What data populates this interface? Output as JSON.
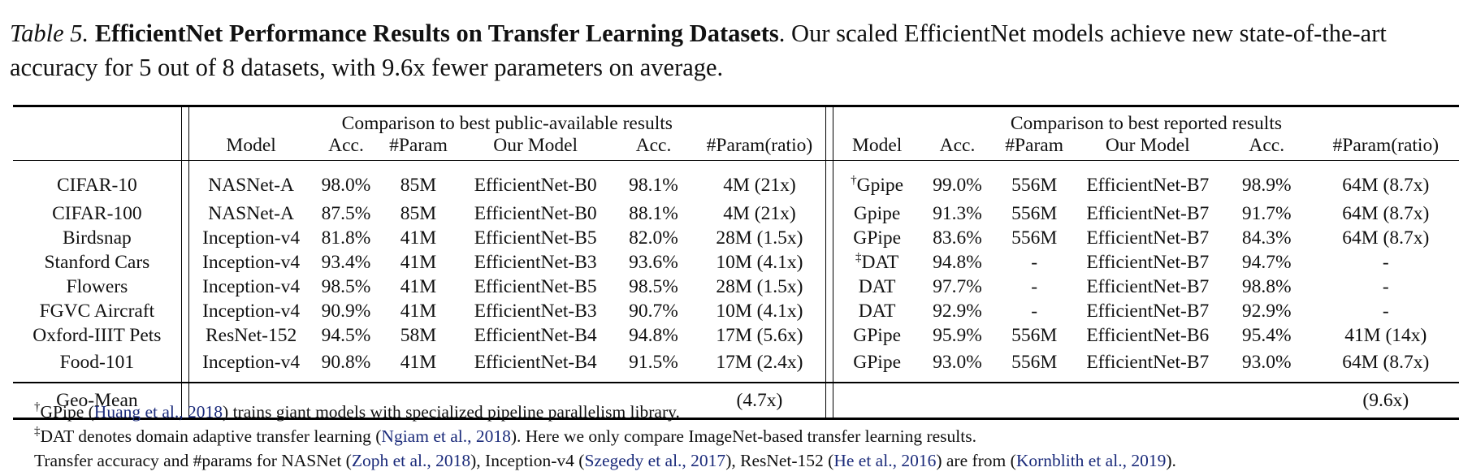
{
  "caption": {
    "label": "Table 5.",
    "title": "EfficientNet Performance Results on Transfer Learning Datasets",
    "text": ". Our scaled EfficientNet models achieve new state-of-the-art accuracy for 5 out of 8 datasets, with 9.6x fewer parameters on average."
  },
  "table": {
    "group_public": "Comparison to best public-available results",
    "group_reported": "Comparison to best reported results",
    "columns": [
      "Model",
      "Acc.",
      "#Param",
      "Our Model",
      "Acc.",
      "#Param(ratio)",
      "Model",
      "Acc.",
      "#Param",
      "Our Model",
      "Acc.",
      "#Param(ratio)"
    ],
    "rows": [
      {
        "dataset": "CIFAR-10",
        "pub_model": "NASNet-A",
        "pub_acc": "98.0%",
        "pub_param": "85M",
        "our_model": "EfficientNet-B0",
        "our_acc": "98.1%",
        "our_param": "4M (21x)",
        "rep_mark": "†",
        "rep_model": "Gpipe",
        "rep_acc": "99.0%",
        "rep_param": "556M",
        "our2_model": "EfficientNet-B7",
        "our2_acc": "98.9%",
        "our2_param": "64M (8.7x)"
      },
      {
        "dataset": "CIFAR-100",
        "pub_model": "NASNet-A",
        "pub_acc": "87.5%",
        "pub_param": "85M",
        "our_model": "EfficientNet-B0",
        "our_acc": "88.1%",
        "our_param": "4M (21x)",
        "rep_mark": "",
        "rep_model": "Gpipe",
        "rep_acc": "91.3%",
        "rep_param": "556M",
        "our2_model": "EfficientNet-B7",
        "our2_acc": "91.7%",
        "our2_param": "64M (8.7x)"
      },
      {
        "dataset": "Birdsnap",
        "pub_model": "Inception-v4",
        "pub_acc": "81.8%",
        "pub_param": "41M",
        "our_model": "EfficientNet-B5",
        "our_acc": "82.0%",
        "our_param": "28M (1.5x)",
        "rep_mark": "",
        "rep_model": "GPipe",
        "rep_acc": "83.6%",
        "rep_param": "556M",
        "our2_model": "EfficientNet-B7",
        "our2_acc": "84.3%",
        "our2_param": "64M (8.7x)"
      },
      {
        "dataset": "Stanford Cars",
        "pub_model": "Inception-v4",
        "pub_acc": "93.4%",
        "pub_param": "41M",
        "our_model": "EfficientNet-B3",
        "our_acc": "93.6%",
        "our_param": "10M (4.1x)",
        "rep_mark": "‡",
        "rep_model": "DAT",
        "rep_acc": "94.8%",
        "rep_param": "-",
        "our2_model": "EfficientNet-B7",
        "our2_acc": "94.7%",
        "our2_param": "-"
      },
      {
        "dataset": "Flowers",
        "pub_model": "Inception-v4",
        "pub_acc": "98.5%",
        "pub_param": "41M",
        "our_model": "EfficientNet-B5",
        "our_acc": "98.5%",
        "our_param": "28M (1.5x)",
        "rep_mark": "",
        "rep_model": "DAT",
        "rep_acc": "97.7%",
        "rep_param": "-",
        "our2_model": "EfficientNet-B7",
        "our2_acc": "98.8%",
        "our2_param": "-"
      },
      {
        "dataset": "FGVC Aircraft",
        "pub_model": "Inception-v4",
        "pub_acc": "90.9%",
        "pub_param": "41M",
        "our_model": "EfficientNet-B3",
        "our_acc": "90.7%",
        "our_param": "10M (4.1x)",
        "rep_mark": "",
        "rep_model": "DAT",
        "rep_acc": "92.9%",
        "rep_param": "-",
        "our2_model": "EfficientNet-B7",
        "our2_acc": "92.9%",
        "our2_param": "-"
      },
      {
        "dataset": "Oxford-IIIT Pets",
        "pub_model": "ResNet-152",
        "pub_acc": "94.5%",
        "pub_param": "58M",
        "our_model": "EfficientNet-B4",
        "our_acc": "94.8%",
        "our_param": "17M (5.6x)",
        "rep_mark": "",
        "rep_model": "GPipe",
        "rep_acc": "95.9%",
        "rep_param": "556M",
        "our2_model": "EfficientNet-B6",
        "our2_acc": "95.4%",
        "our2_param": "41M (14x)"
      },
      {
        "dataset": "Food-101",
        "pub_model": "Inception-v4",
        "pub_acc": "90.8%",
        "pub_param": "41M",
        "our_model": "EfficientNet-B4",
        "our_acc": "91.5%",
        "our_param": "17M (2.4x)",
        "rep_mark": "",
        "rep_model": "GPipe",
        "rep_acc": "93.0%",
        "rep_param": "556M",
        "our2_model": "EfficientNet-B7",
        "our2_acc": "93.0%",
        "our2_param": "64M (8.7x)"
      }
    ],
    "geo_mean": {
      "label": "Geo-Mean",
      "public_ratio": "(4.7x)",
      "reported_ratio": "(9.6x)"
    }
  },
  "footnotes": {
    "gpipe_mark": "†",
    "gpipe_pre": "GPipe (",
    "gpipe_cite": "Huang et al., 2018",
    "gpipe_post": ") trains giant models with specialized pipeline parallelism library.",
    "dat_mark": "‡",
    "dat_pre": "DAT denotes domain adaptive transfer learning (",
    "dat_cite": "Ngiam et al., 2018",
    "dat_post": "). Here we only compare ImageNet-based transfer learning results.",
    "src_1": "Transfer accuracy and #params for NASNet (",
    "src_cite_1": "Zoph et al., 2018",
    "src_2": "), Inception-v4 (",
    "src_cite_2": "Szegedy et al., 2017",
    "src_3": "), ResNet-152 (",
    "src_cite_3": "He et al., 2016",
    "src_4": ") are from (",
    "src_cite_4": "Kornblith et al., 2019",
    "src_5": ")."
  },
  "bold_cells": [
    "0.rep_acc",
    "1.our2_acc",
    "2.our2_acc",
    "3.rep_acc",
    "4.our2_acc",
    "5.our2_acc",
    "6.rep_acc",
    "7.our2_acc"
  ]
}
